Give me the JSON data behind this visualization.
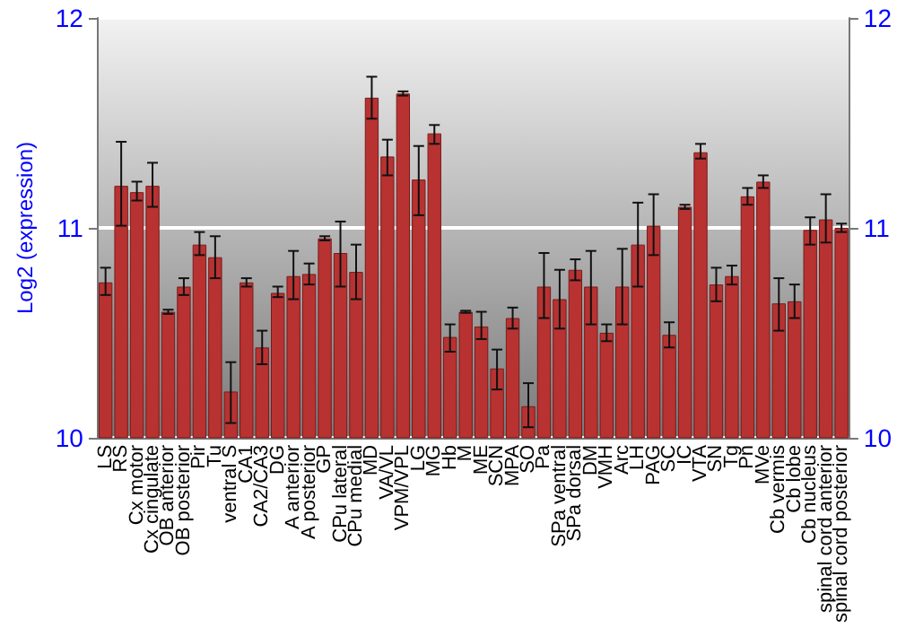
{
  "chart_data": {
    "type": "bar",
    "ylabel": "Log2 (expression)",
    "categories": [
      "LS",
      "RS",
      "Cx motor",
      "Cx cingulate",
      "OB anterior",
      "OB posterior",
      "Pir",
      "Tu",
      "ventral S",
      "CA1",
      "CA2/CA3",
      "DG",
      "A anterior",
      "A posterior",
      "GP",
      "CPu lateral",
      "CPu medial",
      "MD",
      "VA/VL",
      "VPM/VPL",
      "LG",
      "MG",
      "Hb",
      "M",
      "ME",
      "SCN",
      "MPA",
      "SO",
      "Pa",
      "SPa ventral",
      "SPa dorsal",
      "DM",
      "VMH",
      "Arc",
      "LH",
      "PAG",
      "SC",
      "IC",
      "VTA",
      "SN",
      "Tg",
      "Pn",
      "MVe",
      "Cb vermis",
      "Cb lobe",
      "Cb nucleus",
      "spinal cord anterior",
      "spinal cord posterior"
    ],
    "values": [
      10.74,
      11.2,
      11.17,
      11.2,
      10.6,
      10.72,
      10.92,
      10.86,
      10.22,
      10.74,
      10.43,
      10.69,
      10.77,
      10.78,
      10.95,
      10.88,
      10.79,
      11.62,
      11.34,
      11.64,
      11.23,
      11.45,
      10.48,
      10.6,
      10.53,
      10.33,
      10.57,
      10.15,
      10.72,
      10.66,
      10.8,
      10.72,
      10.5,
      10.72,
      10.92,
      11.01,
      10.49,
      11.1,
      11.36,
      10.73,
      10.77,
      11.15,
      11.22,
      10.64,
      10.65,
      10.99,
      11.04,
      11.0
    ],
    "errors": [
      [
        10.68,
        10.81
      ],
      [
        11.01,
        11.41
      ],
      [
        11.13,
        11.22
      ],
      [
        11.1,
        11.31
      ],
      [
        10.59,
        10.61
      ],
      [
        10.68,
        10.76
      ],
      [
        10.87,
        10.98
      ],
      [
        10.76,
        10.96
      ],
      [
        10.07,
        10.36
      ],
      [
        10.72,
        10.76
      ],
      [
        10.35,
        10.51
      ],
      [
        10.67,
        10.72
      ],
      [
        10.66,
        10.89
      ],
      [
        10.73,
        10.83
      ],
      [
        10.94,
        10.96
      ],
      [
        10.72,
        11.03
      ],
      [
        10.66,
        10.92
      ],
      [
        11.52,
        11.72
      ],
      [
        11.25,
        11.42
      ],
      [
        11.63,
        11.65
      ],
      [
        11.06,
        11.39
      ],
      [
        11.4,
        11.49
      ],
      [
        10.41,
        10.54
      ],
      [
        10.595,
        10.605
      ],
      [
        10.47,
        10.6
      ],
      [
        10.23,
        10.42
      ],
      [
        10.52,
        10.62
      ],
      [
        10.05,
        10.26
      ],
      [
        10.57,
        10.88
      ],
      [
        10.52,
        10.8
      ],
      [
        10.75,
        10.85
      ],
      [
        10.54,
        10.89
      ],
      [
        10.46,
        10.54
      ],
      [
        10.54,
        10.9
      ],
      [
        10.72,
        11.12
      ],
      [
        10.87,
        11.16
      ],
      [
        10.43,
        10.55
      ],
      [
        11.09,
        11.11
      ],
      [
        11.33,
        11.4
      ],
      [
        10.65,
        10.81
      ],
      [
        10.73,
        10.82
      ],
      [
        11.11,
        11.19
      ],
      [
        11.19,
        11.25
      ],
      [
        10.51,
        10.76
      ],
      [
        10.57,
        10.73
      ],
      [
        10.92,
        11.05
      ],
      [
        10.93,
        11.16
      ],
      [
        10.98,
        11.02
      ]
    ],
    "color": "#b83232",
    "ylim": [
      10,
      12
    ],
    "yticks": [
      10,
      11,
      12
    ],
    "y2lim": [
      10,
      12
    ],
    "y2ticks": [
      10,
      11,
      12
    ],
    "grid": "y"
  }
}
